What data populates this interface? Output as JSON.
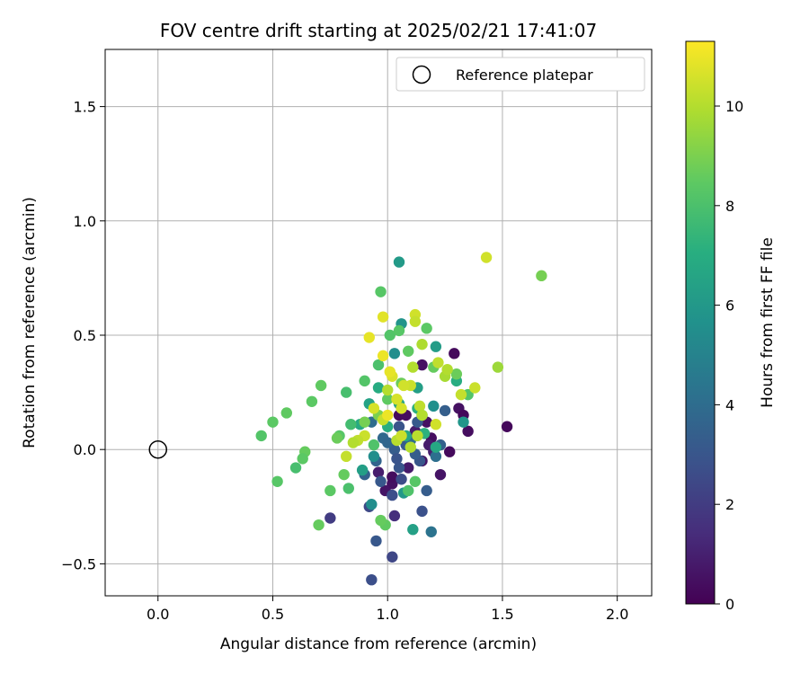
{
  "chart_data": {
    "type": "scatter",
    "title": "FOV centre drift starting at 2025/02/21 17:41:07",
    "xlabel": "Angular distance from reference (arcmin)",
    "ylabel": "Rotation from reference (arcmin)",
    "colorbar_label": "Hours from first FF file",
    "xlim": [
      -0.23,
      2.15
    ],
    "ylim": [
      -0.64,
      1.75
    ],
    "xticks": [
      0.0,
      0.5,
      1.0,
      1.5,
      2.0
    ],
    "xtick_labels": [
      "0.0",
      "0.5",
      "1.0",
      "1.5",
      "2.0"
    ],
    "yticks": [
      -0.5,
      0.0,
      0.5,
      1.0,
      1.5
    ],
    "ytick_labels": [
      "−0.5",
      "0.0",
      "0.5",
      "1.0",
      "1.5"
    ],
    "colorbar_range": [
      0,
      11.3
    ],
    "colorbar_ticks": [
      0,
      2,
      4,
      6,
      8,
      10
    ],
    "colorbar_tick_labels": [
      "0",
      "2",
      "4",
      "6",
      "8",
      "10"
    ],
    "colormap": "viridis",
    "grid": true,
    "legend": {
      "position": "top-right",
      "entries": [
        "Reference platepar"
      ]
    },
    "reference_point": {
      "x": 0.0,
      "y": 0.0
    },
    "points": [
      [
        1.29,
        0.42,
        0.3
      ],
      [
        1.52,
        0.1,
        0.2
      ],
      [
        1.35,
        0.08,
        0.4
      ],
      [
        1.31,
        0.18,
        0.5
      ],
      [
        1.33,
        0.15,
        0.2
      ],
      [
        1.27,
        -0.01,
        0.3
      ],
      [
        1.23,
        -0.11,
        0.6
      ],
      [
        1.19,
        0.05,
        0.4
      ],
      [
        1.15,
        0.37,
        0.5
      ],
      [
        1.05,
        0.15,
        0.3
      ],
      [
        1.18,
        0.02,
        0.8
      ],
      [
        1.15,
        -0.05,
        0.6
      ],
      [
        1.17,
        0.12,
        0.5
      ],
      [
        1.12,
        0.08,
        0.9
      ],
      [
        1.2,
        -0.01,
        1.0
      ],
      [
        1.08,
        0.15,
        0.4
      ],
      [
        1.1,
        0.05,
        0.7
      ],
      [
        1.09,
        -0.08,
        0.8
      ],
      [
        1.02,
        -0.15,
        0.5
      ],
      [
        1.02,
        -0.12,
        0.4
      ],
      [
        1.03,
        -0.29,
        1.5
      ],
      [
        0.99,
        -0.18,
        0.6
      ],
      [
        0.96,
        -0.1,
        0.9
      ],
      [
        0.75,
        -0.3,
        2.0
      ],
      [
        0.92,
        -0.25,
        2.5
      ],
      [
        1.02,
        -0.47,
        2.4
      ],
      [
        0.93,
        -0.57,
        2.7
      ],
      [
        0.95,
        -0.4,
        3.1
      ],
      [
        1.15,
        -0.27,
        2.8
      ],
      [
        1.02,
        -0.2,
        2.7
      ],
      [
        1.06,
        -0.13,
        2.6
      ],
      [
        1.05,
        -0.08,
        3.0
      ],
      [
        1.13,
        0.12,
        3.2
      ],
      [
        1.17,
        -0.18,
        3.3
      ],
      [
        1.25,
        0.17,
        3.4
      ],
      [
        1.23,
        0.02,
        3.5
      ],
      [
        1.14,
        -0.05,
        3.0
      ],
      [
        1.03,
        0.0,
        3.3
      ],
      [
        1.05,
        0.1,
        2.9
      ],
      [
        0.97,
        -0.14,
        3.1
      ],
      [
        0.95,
        -0.05,
        3.6
      ],
      [
        0.9,
        -0.11,
        3.5
      ],
      [
        0.98,
        0.05,
        3.8
      ],
      [
        1.08,
        0.02,
        3.2
      ],
      [
        1.0,
        0.03,
        3.7
      ],
      [
        1.12,
        -0.02,
        3.3
      ],
      [
        1.04,
        -0.04,
        2.9
      ],
      [
        0.93,
        0.12,
        4.0
      ],
      [
        1.1,
        0.04,
        4.0
      ],
      [
        1.21,
        -0.03,
        4.1
      ],
      [
        1.19,
        -0.36,
        4.3
      ],
      [
        1.03,
        0.42,
        5.5
      ],
      [
        1.06,
        0.55,
        5.8
      ],
      [
        1.05,
        0.82,
        6.1
      ],
      [
        1.2,
        0.19,
        5.6
      ],
      [
        1.33,
        0.12,
        5.9
      ],
      [
        1.21,
        0.45,
        6.2
      ],
      [
        1.11,
        -0.35,
        6.4
      ],
      [
        1.07,
        -0.19,
        6.0
      ],
      [
        0.93,
        -0.24,
        5.5
      ],
      [
        0.89,
        -0.09,
        6.3
      ],
      [
        0.92,
        0.2,
        6.5
      ],
      [
        0.94,
        -0.03,
        5.5
      ],
      [
        1.13,
        0.27,
        6.3
      ],
      [
        0.88,
        0.11,
        6.8
      ],
      [
        1.0,
        0.1,
        7.0
      ],
      [
        1.05,
        0.2,
        6.5
      ],
      [
        1.13,
        0.18,
        7.1
      ],
      [
        1.16,
        0.07,
        7.2
      ],
      [
        1.3,
        0.3,
        7.0
      ],
      [
        1.21,
        0.01,
        6.7
      ],
      [
        0.96,
        0.27,
        6.9
      ],
      [
        1.08,
        0.06,
        6.6
      ],
      [
        1.15,
        0.15,
        7.0
      ],
      [
        0.5,
        0.12,
        8.4
      ],
      [
        0.56,
        0.16,
        8.5
      ],
      [
        0.45,
        0.06,
        8.2
      ],
      [
        0.52,
        -0.14,
        8.3
      ],
      [
        0.6,
        -0.08,
        7.9
      ],
      [
        0.64,
        -0.01,
        8.6
      ],
      [
        0.67,
        0.21,
        8.4
      ],
      [
        0.71,
        0.28,
        8.5
      ],
      [
        0.7,
        -0.33,
        8.6
      ],
      [
        0.75,
        -0.18,
        8.4
      ],
      [
        0.79,
        0.06,
        8.3
      ],
      [
        0.83,
        -0.17,
        8.0
      ],
      [
        0.82,
        0.25,
        7.9
      ],
      [
        0.84,
        0.11,
        7.8
      ],
      [
        0.9,
        0.3,
        8.2
      ],
      [
        0.94,
        0.02,
        8.1
      ],
      [
        0.97,
        0.69,
        8.3
      ],
      [
        0.99,
        -0.33,
        8.5
      ],
      [
        0.97,
        -0.31,
        8.6
      ],
      [
        1.01,
        0.5,
        8.2
      ],
      [
        0.96,
        0.37,
        8.0
      ],
      [
        1.05,
        0.52,
        8.3
      ],
      [
        1.09,
        0.43,
        8.5
      ],
      [
        1.17,
        0.53,
        8.4
      ],
      [
        1.2,
        0.36,
        8.6
      ],
      [
        1.3,
        0.33,
        8.7
      ],
      [
        1.35,
        0.24,
        8.2
      ],
      [
        1.09,
        -0.18,
        8.1
      ],
      [
        1.12,
        -0.14,
        8.3
      ],
      [
        1.67,
        0.76,
        8.9
      ],
      [
        1.06,
        0.29,
        8.7
      ],
      [
        1.0,
        0.22,
        8.5
      ],
      [
        0.9,
        0.12,
        8.9
      ],
      [
        0.78,
        0.05,
        8.7
      ],
      [
        0.81,
        -0.11,
        8.6
      ],
      [
        0.96,
        0.15,
        9.0
      ],
      [
        0.63,
        -0.04,
        8.4
      ],
      [
        1.43,
        0.84,
        10.5
      ],
      [
        1.48,
        0.36,
        9.6
      ],
      [
        1.38,
        0.27,
        10.4
      ],
      [
        1.32,
        0.24,
        10.3
      ],
      [
        1.25,
        0.32,
        9.8
      ],
      [
        1.26,
        0.35,
        10.0
      ],
      [
        1.22,
        0.38,
        10.2
      ],
      [
        1.12,
        0.59,
        10.5
      ],
      [
        1.12,
        0.56,
        10.3
      ],
      [
        1.11,
        0.36,
        10.0
      ],
      [
        1.15,
        0.46,
        9.9
      ],
      [
        1.1,
        0.28,
        10.4
      ],
      [
        0.98,
        0.58,
        10.8
      ],
      [
        0.92,
        0.49,
        10.9
      ],
      [
        0.98,
        0.41,
        11.0
      ],
      [
        1.02,
        0.32,
        10.7
      ],
      [
        1.01,
        0.34,
        10.9
      ],
      [
        1.04,
        0.22,
        10.6
      ],
      [
        1.14,
        0.19,
        10.2
      ],
      [
        1.06,
        0.18,
        10.6
      ],
      [
        0.98,
        0.13,
        10.3
      ],
      [
        0.94,
        0.18,
        10.6
      ],
      [
        0.9,
        0.06,
        10.4
      ],
      [
        0.87,
        0.04,
        10.2
      ],
      [
        0.85,
        0.03,
        10.0
      ],
      [
        0.82,
        -0.03,
        10.3
      ],
      [
        1.04,
        0.04,
        10.1
      ],
      [
        1.13,
        0.06,
        10.1
      ],
      [
        1.21,
        0.11,
        10.5
      ],
      [
        1.06,
        0.06,
        10.4
      ],
      [
        1.1,
        0.01,
        10.0
      ],
      [
        1.0,
        0.26,
        10.0
      ],
      [
        1.07,
        0.28,
        10.5
      ],
      [
        1.0,
        0.15,
        11.0
      ],
      [
        1.15,
        0.15,
        10.0
      ]
    ]
  }
}
